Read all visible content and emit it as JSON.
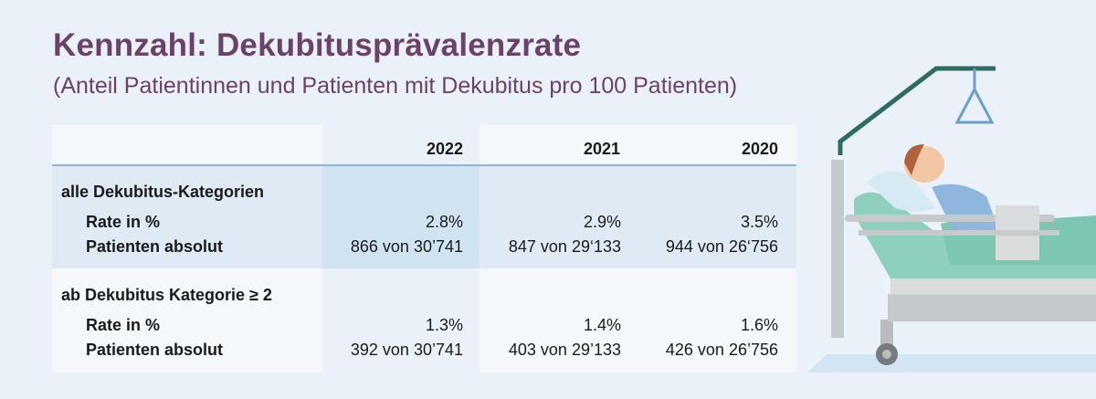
{
  "title": "Kennzahl: Dekubitusprävalenzrate",
  "subtitle": "(Anteil Patientinnen und Patienten mit Dekubitus pro 100 Patienten)",
  "table": {
    "years": [
      "2022",
      "2021",
      "2020"
    ],
    "sections": [
      {
        "label": "alle Dekubitus-Kategorien",
        "rate_label": "Rate in %",
        "abs_label": "Patienten absolut",
        "rates": [
          "2.8%",
          "2.9%",
          "3.5%"
        ],
        "absolutes": [
          "866 von 30’741",
          "847 von 29‘133",
          "944 von 26‘756"
        ]
      },
      {
        "label": "ab Dekubitus Kategorie ≥ 2",
        "rate_label": "Rate in %",
        "abs_label": "Patienten absolut",
        "rates": [
          "1.3%",
          "1.4%",
          "1.6%"
        ],
        "absolutes": [
          "392 von 30’741",
          "403 von 29’133",
          "426 von 26’756"
        ]
      }
    ]
  },
  "colors": {
    "title": "#6b4368",
    "header_bg": "#f5f8fb",
    "section1_bg": "#dfeaf4",
    "section1_highlight": "#d0e3f1",
    "section2_bg": "#f5f8fb",
    "divider": "#8fb4d4"
  },
  "illustration": "patient-in-hospital-bed"
}
